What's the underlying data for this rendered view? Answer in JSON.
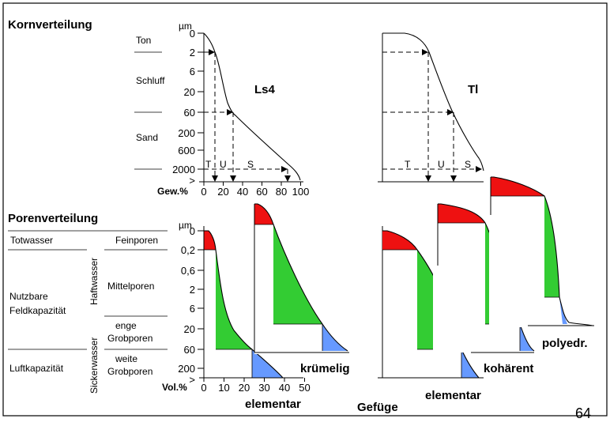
{
  "texts": {
    "korn_title": "Kornverteilung",
    "poren_title": "Porenverteilung",
    "um1": "µm",
    "um2": "µm",
    "ton": "Ton",
    "schluff": "Schluff",
    "sand": "Sand",
    "ls4": "Ls4",
    "tl": "Tl",
    "gew": "Gew.%",
    "vol": "Vol.%",
    "totwasser": "Totwasser",
    "feinporen": "Feinporen",
    "haftwasser": "Haftwasser",
    "mittelporen": "Mittelporen",
    "nutzbare": "Nutzbare",
    "feldkap": "Feldkapazität",
    "sickerwasser": "Sickerwasser",
    "enge": "enge",
    "grobporen1": "Grobporen",
    "weite": "weite",
    "grobporen2": "Grobporen",
    "luftkap": "Luftkapazität",
    "kruemelig": "krümelig",
    "kohaerent": "kohärent",
    "polyedr": "polyedr.",
    "elementar1": "elementar",
    "elementar2": "elementar",
    "gefuege": "Gefüge",
    "page": "64",
    "t1": "T",
    "u1": "U",
    "s1": "S",
    "t2": "T",
    "u2": "U",
    "s2": "S"
  },
  "korn_ticks": [
    "0",
    "2",
    "6",
    "20",
    "60",
    "200",
    "600",
    "2000",
    ">"
  ],
  "korn_x_ticks": [
    "0",
    "20",
    "40",
    "60",
    "80",
    "100"
  ],
  "poren_ticks": [
    "0",
    "0,2",
    "0,6",
    "2",
    "6",
    "20",
    "60",
    "200",
    ">"
  ],
  "poren_x_ticks": [
    "0",
    "10",
    "20",
    "30",
    "40",
    "50"
  ],
  "colors": {
    "red": "#ee1111",
    "green": "#33cc33",
    "blue": "#6699ff",
    "black": "#000000"
  }
}
